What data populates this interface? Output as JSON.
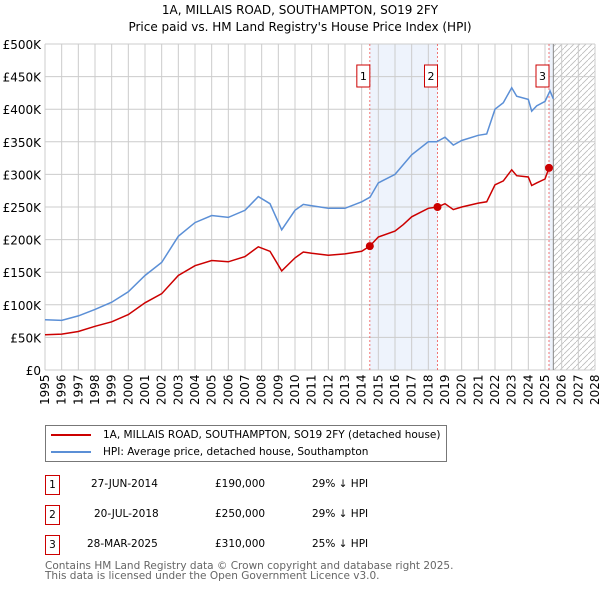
{
  "chart_data": {
    "type": "line",
    "title": "1A, MILLAIS ROAD, SOUTHAMPTON, SO19 2FY",
    "subtitle": "Price paid vs. HM Land Registry's House Price Index (HPI)",
    "xlim": [
      1995,
      2028
    ],
    "ylim": [
      0,
      500000
    ],
    "y_ticks": [
      {
        "v": 0,
        "label": "£0"
      },
      {
        "v": 50000,
        "label": "£50K"
      },
      {
        "v": 100000,
        "label": "£100K"
      },
      {
        "v": 150000,
        "label": "£150K"
      },
      {
        "v": 200000,
        "label": "£200K"
      },
      {
        "v": 250000,
        "label": "£250K"
      },
      {
        "v": 300000,
        "label": "£300K"
      },
      {
        "v": 350000,
        "label": "£350K"
      },
      {
        "v": 400000,
        "label": "£400K"
      },
      {
        "v": 450000,
        "label": "£450K"
      },
      {
        "v": 500000,
        "label": "£500K"
      }
    ],
    "x_ticks": [
      "1995",
      "1996",
      "1997",
      "1998",
      "1999",
      "2000",
      "2001",
      "2002",
      "2003",
      "2004",
      "2005",
      "2006",
      "2007",
      "2008",
      "2009",
      "2010",
      "2011",
      "2012",
      "2013",
      "2014",
      "2015",
      "2016",
      "2017",
      "2018",
      "2019",
      "2020",
      "2021",
      "2022",
      "2023",
      "2024",
      "2025",
      "2026",
      "2027",
      "2028"
    ],
    "series": [
      {
        "name": "1A, MILLAIS ROAD, SOUTHAMPTON, SO19 2FY (detached house)",
        "color": "#cc0000",
        "x": [
          1995,
          1996,
          1997,
          1998,
          1999,
          2000,
          2001,
          2002,
          2003,
          2004,
          2005,
          2006,
          2007,
          2007.8,
          2008.5,
          2009.2,
          2010,
          2010.5,
          2011,
          2012,
          2013,
          2014,
          2014.49,
          2015,
          2016,
          2016.5,
          2017,
          2018,
          2018.55,
          2019,
          2019.5,
          2020,
          2021,
          2021.5,
          2022,
          2022.5,
          2023,
          2023.3,
          2024,
          2024.2,
          2024.5,
          2025,
          2025.24
        ],
        "y": [
          54000,
          55000,
          59000,
          67000,
          74000,
          85000,
          103000,
          117000,
          145000,
          160000,
          168000,
          166000,
          174000,
          189000,
          182000,
          152000,
          172000,
          181000,
          179000,
          176000,
          178000,
          182000,
          190000,
          204000,
          213000,
          223000,
          235000,
          248000,
          250000,
          255000,
          246000,
          250000,
          256000,
          258000,
          284000,
          290000,
          307000,
          298000,
          296000,
          283000,
          287000,
          293000,
          310000
        ]
      },
      {
        "name": "HPI: Average price, detached house, Southampton",
        "color": "#5b8fd6",
        "x": [
          1995,
          1996,
          1997,
          1998,
          1999,
          2000,
          2001,
          2002,
          2003,
          2004,
          2005,
          2006,
          2007,
          2007.8,
          2008.5,
          2009.2,
          2010,
          2010.5,
          2011,
          2012,
          2013,
          2014,
          2014.5,
          2015,
          2016,
          2016.5,
          2017,
          2018,
          2018.5,
          2019,
          2019.5,
          2020,
          2021,
          2021.5,
          2022,
          2022.5,
          2023,
          2023.3,
          2024,
          2024.2,
          2024.5,
          2025,
          2025.3,
          2025.5
        ],
        "y": [
          77000,
          76000,
          83000,
          93000,
          104000,
          120000,
          145000,
          165000,
          205000,
          226000,
          237000,
          234000,
          245000,
          266000,
          255000,
          215000,
          245000,
          254000,
          252000,
          248000,
          248000,
          258000,
          265000,
          287000,
          300000,
          315000,
          330000,
          350000,
          350000,
          357000,
          345000,
          352000,
          360000,
          362000,
          400000,
          410000,
          433000,
          420000,
          415000,
          397000,
          405000,
          412000,
          428000,
          416000
        ]
      }
    ],
    "sales": [
      {
        "n": "1",
        "x": 2014.49,
        "y": 190000,
        "date": "27-JUN-2014",
        "price": "£190,000",
        "delta": "29% ↓ HPI"
      },
      {
        "n": "2",
        "x": 2018.55,
        "y": 250000,
        "date": "20-JUL-2018",
        "price": "£250,000",
        "delta": "29% ↓ HPI"
      },
      {
        "n": "3",
        "x": 2025.24,
        "y": 310000,
        "date": "28-MAR-2025",
        "price": "£310,000",
        "delta": "25% ↓ HPI"
      }
    ],
    "forecast_from": 2025.5,
    "legend_position": "below"
  },
  "footer": {
    "line1": "Contains HM Land Registry data © Crown copyright and database right 2025.",
    "line2": "This data is licensed under the Open Government Licence v3.0."
  }
}
